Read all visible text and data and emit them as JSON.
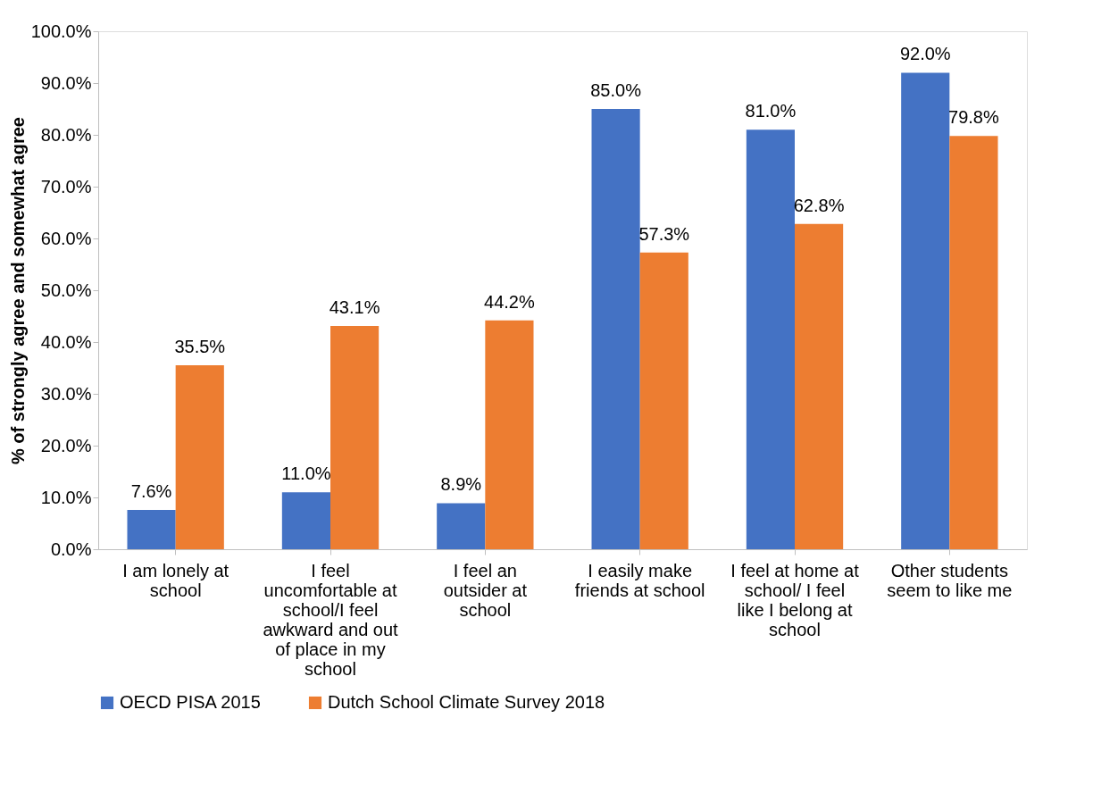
{
  "chart_data": {
    "type": "bar",
    "ylabel": "% of strongly agree and somewhat agree",
    "categories": [
      "I am lonely at school",
      "I feel uncomfortable at school/I feel awkward and out of place in my school",
      "I feel an outsider at school",
      "I easily make friends at school",
      "I feel at home at school/ I feel like I belong at school",
      "Other students seem to like me"
    ],
    "series": [
      {
        "name": "OECD PISA 2015",
        "color": "#4472c4",
        "values": [
          7.6,
          11.0,
          8.9,
          85.0,
          81.0,
          92.0
        ],
        "value_labels": [
          "7.6%",
          "11.0%",
          "8.9%",
          "85.0%",
          "81.0%",
          "92.0%"
        ]
      },
      {
        "name": "Dutch School Climate Survey 2018",
        "color": "#ed7d31",
        "values": [
          35.5,
          43.1,
          44.2,
          57.3,
          62.8,
          79.8
        ],
        "value_labels": [
          "35.5%",
          "43.1%",
          "44.2%",
          "57.3%",
          "62.8%",
          "79.8%"
        ]
      }
    ],
    "ylim": [
      0,
      100
    ],
    "yticks": [
      {
        "value": 0,
        "label": "0.0%"
      },
      {
        "value": 10,
        "label": "10.0%"
      },
      {
        "value": 20,
        "label": "20.0%"
      },
      {
        "value": 30,
        "label": "30.0%"
      },
      {
        "value": 40,
        "label": "40.0%"
      },
      {
        "value": 50,
        "label": "50.0%"
      },
      {
        "value": 60,
        "label": "60.0%"
      },
      {
        "value": 70,
        "label": "70.0%"
      },
      {
        "value": 80,
        "label": "80.0%"
      },
      {
        "value": 90,
        "label": "90.0%"
      },
      {
        "value": 100,
        "label": "100.0%"
      }
    ],
    "grid": false,
    "legend": "bottom"
  }
}
